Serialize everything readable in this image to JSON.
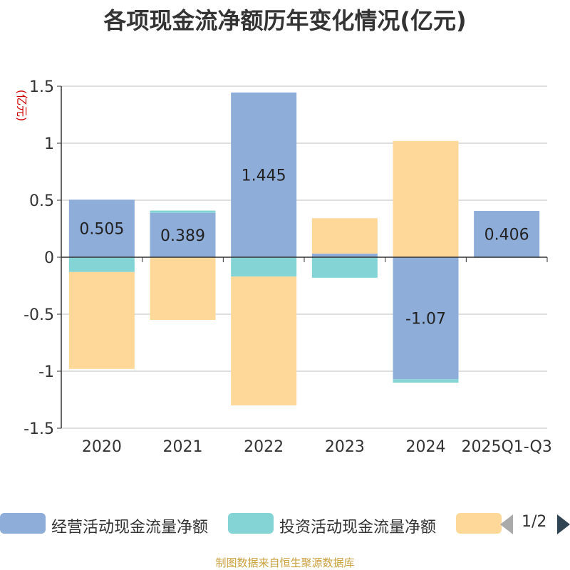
{
  "title": "各项现金流净额历年变化情况(亿元)",
  "y_unit": "(亿元)",
  "colors": {
    "operating": "#8eadd9",
    "investing": "#84d4d6",
    "financing": "#fed898",
    "unit_text": "#cc0000",
    "source_text": "#c9a13e"
  },
  "legend": {
    "items": [
      {
        "label": "经营活动现金流量净额",
        "color": "#8eadd9"
      },
      {
        "label": "投资活动现金流量净额",
        "color": "#84d4d6"
      },
      {
        "label": "",
        "color": "#fed898"
      }
    ],
    "page": "1/2"
  },
  "source": "制图数据来自恒生聚源数据库",
  "chart_data": {
    "type": "bar",
    "stacked": true,
    "categories": [
      "2020",
      "2021",
      "2022",
      "2023",
      "2024",
      "2025Q1-Q3"
    ],
    "ylim": [
      -1.5,
      1.5
    ],
    "yticks": [
      -1.5,
      -1,
      -0.5,
      0,
      0.5,
      1,
      1.5
    ],
    "ytick_labels": [
      "-1.5",
      "-1",
      "-0.5",
      "0",
      "0.5",
      "1",
      "1.5"
    ],
    "grid": true,
    "legend_position": "bottom",
    "series": [
      {
        "name": "经营活动现金流量净额",
        "color": "#8eadd9",
        "values": [
          0.505,
          0.389,
          1.445,
          0.032,
          -1.07,
          0.406
        ],
        "labels": [
          "0.505",
          "0.389",
          "1.445",
          "",
          "-1.07",
          "0.406"
        ]
      },
      {
        "name": "投资活动现金流量净额",
        "color": "#84d4d6",
        "values": [
          -0.13,
          0.02,
          -0.17,
          -0.18,
          -0.03,
          -0.005
        ]
      },
      {
        "name": "",
        "color": "#fed898",
        "values": [
          -0.85,
          -0.55,
          -1.13,
          0.31,
          1.02,
          0.0
        ]
      }
    ]
  }
}
